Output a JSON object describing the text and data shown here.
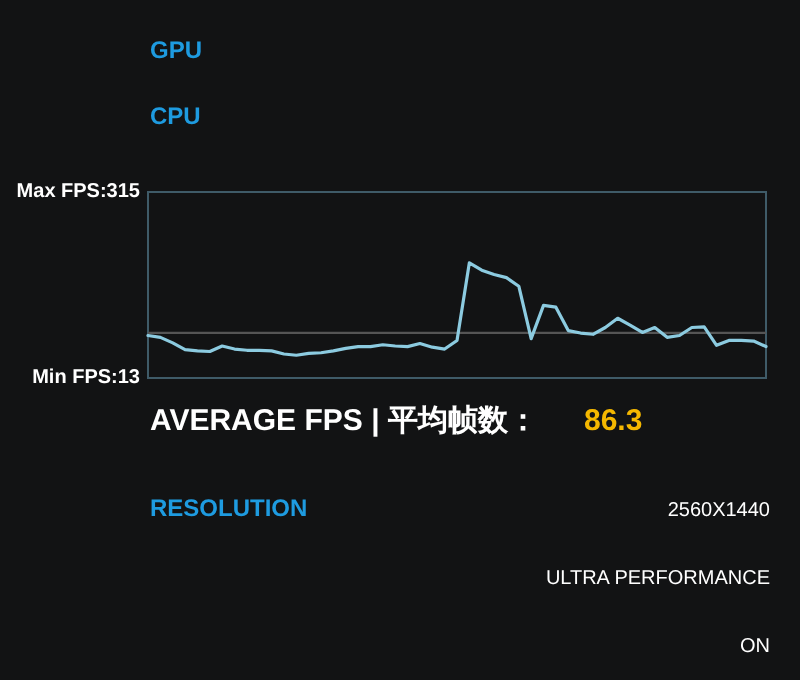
{
  "chart_data": {
    "type": "line",
    "categories": [
      null,
      null,
      null,
      null,
      null,
      null,
      null,
      null,
      null,
      null,
      null,
      null,
      null,
      null,
      null,
      null,
      null,
      null,
      null,
      null,
      null,
      null,
      null,
      null,
      null,
      null,
      null,
      null,
      null,
      null,
      null,
      null,
      null,
      null,
      null,
      null,
      null,
      null,
      null,
      null,
      null,
      null,
      null,
      null,
      null,
      null,
      null,
      null,
      null,
      null,
      null
    ],
    "series": [
      {
        "color": "#8ccbe0",
        "values": [
          82,
          79,
          70,
          59,
          57,
          56,
          65,
          60,
          58,
          58,
          57,
          52,
          50,
          53,
          54,
          57,
          61,
          64,
          64,
          67,
          65,
          64,
          69,
          63,
          60,
          74,
          200,
          188,
          181,
          176,
          162,
          77,
          131,
          128,
          90,
          86,
          84,
          95,
          110,
          99,
          87,
          95,
          79,
          82,
          95,
          96,
          66,
          74,
          74,
          73,
          64
        ]
      }
    ],
    "ylim": [
      13,
      315
    ],
    "yticks": [
      {
        "value": 315,
        "label": "Max FPS:315"
      },
      {
        "value": 13,
        "label": "Min FPS:13"
      }
    ],
    "tick_labels": "y",
    "ref_lines": [
      {
        "axis": "y",
        "value": 86.3,
        "color": "#555555"
      }
    ],
    "annotations": [
      "GPU",
      "CPU",
      "AVERAGE FPS | 平均帧数：",
      "86.3",
      "RESOLUTION",
      "2560X1440",
      "ULTRA PERFORMANCE",
      "ON"
    ]
  }
}
